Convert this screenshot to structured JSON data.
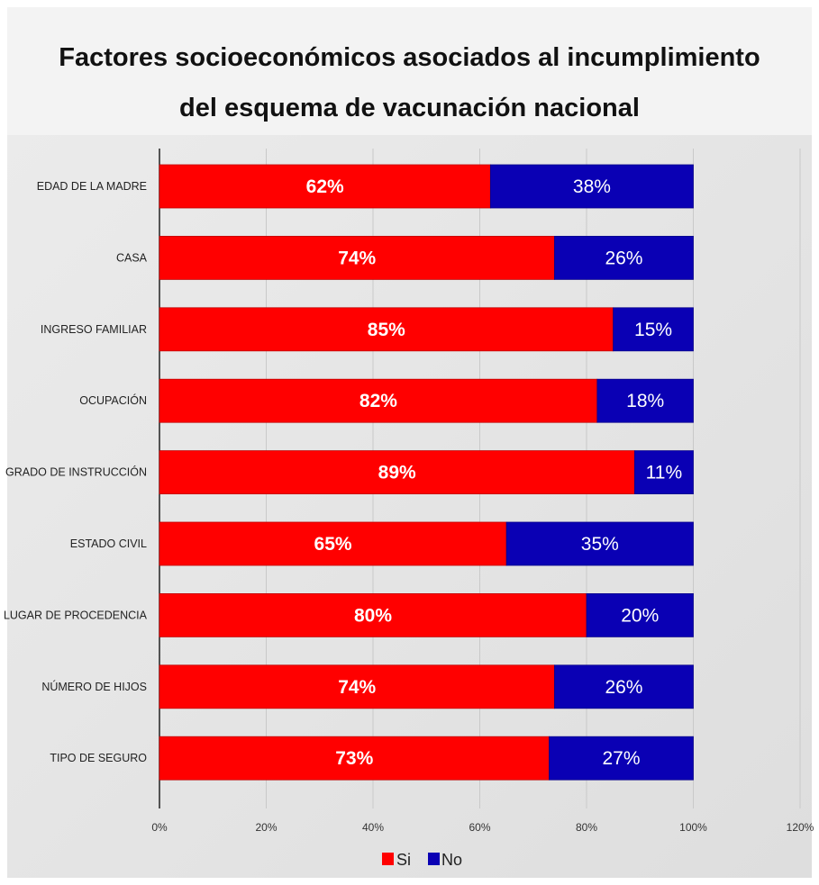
{
  "title_line1": "Factores socioeconómicos asociados al incumplimiento",
  "title_line2": "del esquema de vacunación nacional",
  "colors": {
    "si": "#ff0000",
    "no": "#0a00b4"
  },
  "chart_data": {
    "type": "bar",
    "orientation": "horizontal",
    "stacked": true,
    "categories": [
      "EDAD DE LA MADRE",
      "CASA",
      "INGRESO FAMILIAR",
      "OCUPACIÓN",
      "GRADO DE INSTRUCCIÓN",
      "ESTADO CIVIL",
      "LUGAR DE PROCEDENCIA",
      "NÚMERO DE HIJOS",
      "TIPO DE SEGURO"
    ],
    "series": [
      {
        "name": "Si",
        "values": [
          62,
          74,
          85,
          82,
          89,
          65,
          80,
          74,
          73
        ]
      },
      {
        "name": "No",
        "values": [
          38,
          26,
          15,
          18,
          11,
          35,
          20,
          26,
          27
        ]
      }
    ],
    "xlim": [
      0,
      120
    ],
    "x_ticks": [
      "0%",
      "20%",
      "40%",
      "60%",
      "80%",
      "100%",
      "120%"
    ],
    "legend": "bottom",
    "grid": true
  }
}
